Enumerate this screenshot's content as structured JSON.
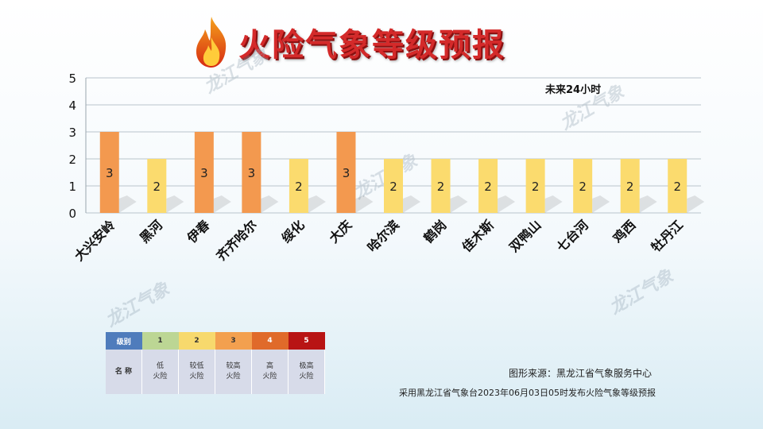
{
  "title": "火险气象等级预报",
  "period_label": "未来24小时",
  "watermark_text": "龙江气象",
  "chart_data": {
    "type": "bar",
    "categories": [
      "大兴安岭",
      "黑河",
      "伊春",
      "齐齐哈尔",
      "绥化",
      "大庆",
      "哈尔滨",
      "鹤岗",
      "佳木斯",
      "双鸭山",
      "七台河",
      "鸡西",
      "牡丹江"
    ],
    "values": [
      3,
      2,
      3,
      3,
      2,
      3,
      2,
      2,
      2,
      2,
      2,
      2,
      2
    ],
    "ylim": [
      0,
      5
    ],
    "yticks": [
      0,
      1,
      2,
      3,
      4,
      5
    ],
    "grid": true,
    "level_colors": {
      "2": "#fbdb6e",
      "3": "#f3994f"
    }
  },
  "legend": {
    "header_label": "级别",
    "name_label": "名 称",
    "levels": [
      {
        "level": "1",
        "name_line1": "低",
        "name_line2": "火险",
        "color": "#bcd694"
      },
      {
        "level": "2",
        "name_line1": "较低",
        "name_line2": "火险",
        "color": "#f7d96d"
      },
      {
        "level": "3",
        "name_line1": "较高",
        "name_line2": "火险",
        "color": "#f3a04f"
      },
      {
        "level": "4",
        "name_line1": "高",
        "name_line2": "火险",
        "color": "#e06a2a"
      },
      {
        "level": "5",
        "name_line1": "极高",
        "name_line2": "火险",
        "color": "#b81414"
      }
    ],
    "header_color": "#4f7cbc"
  },
  "credit_source": "图形来源：黑龙江省气象服务中心",
  "credit_note": "采用黑龙江省气象台2023年06月03日05时发布火险气象等级预报"
}
